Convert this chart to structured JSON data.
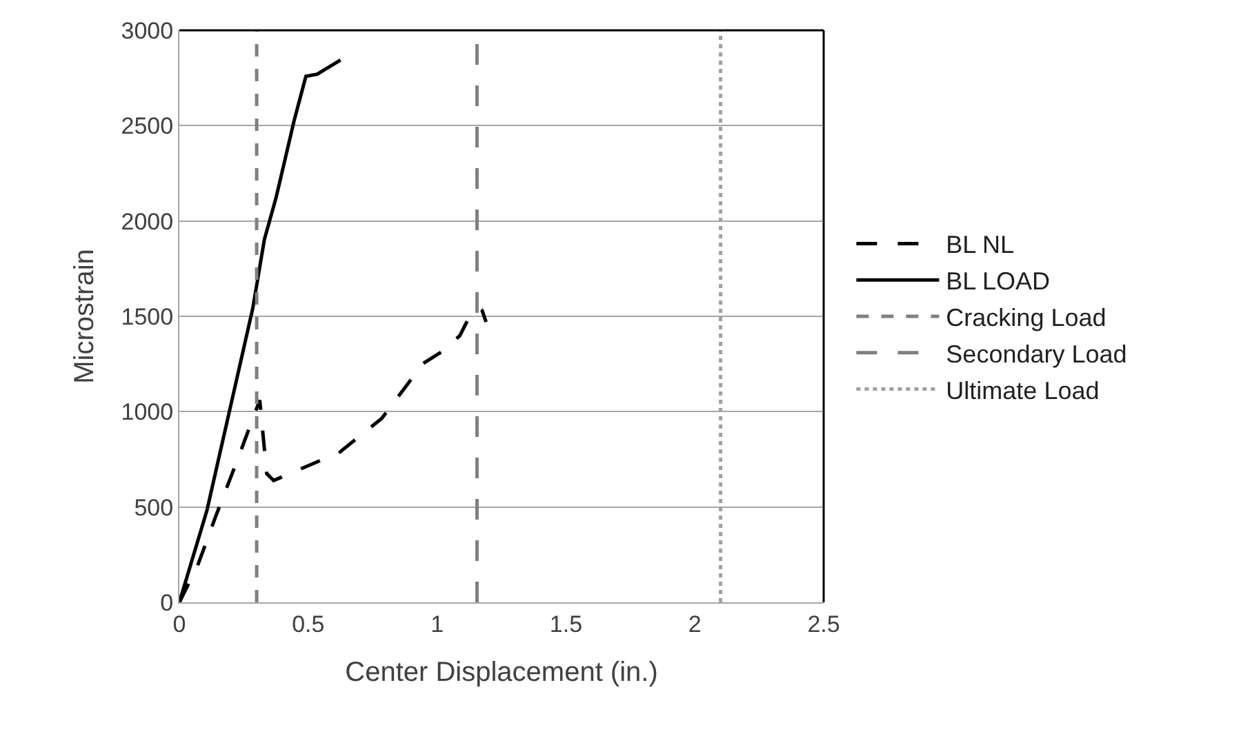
{
  "chart_data": {
    "type": "line",
    "xlabel": "Center Displacement (in.)",
    "ylabel": "Microstrain",
    "xlim": [
      0,
      2.5
    ],
    "xticks": [
      0,
      0.5,
      1,
      1.5,
      2,
      2.5
    ],
    "ylim": [
      0,
      3000
    ],
    "yticks": [
      0,
      500,
      1000,
      1500,
      2000,
      2500,
      3000
    ],
    "grid": "y",
    "legend": "right",
    "marker": "none",
    "series": [
      {
        "name": "BL NL",
        "color": "#000000",
        "line_style": "dashed",
        "x": [
          0,
          0.071,
          0.143,
          0.232,
          0.285,
          0.312,
          0.339,
          0.366,
          0.428,
          0.553,
          0.607,
          0.785,
          0.946,
          1.017,
          1.088,
          1.124,
          1.16,
          1.175,
          1.19
        ],
        "values": [
          0,
          193,
          458,
          771,
          964,
          1060,
          675,
          639,
          675,
          747,
          771,
          964,
          1253,
          1313,
          1398,
          1494,
          1543,
          1530,
          1470
        ]
      },
      {
        "name": "BL LOAD",
        "color": "#000000",
        "line_style": "solid",
        "x": [
          0,
          0.107,
          0.285,
          0.33,
          0.375,
          0.446,
          0.491,
          0.535,
          0.625
        ],
        "values": [
          0,
          482,
          1543,
          1904,
          2121,
          2530,
          2759,
          2770,
          2844
        ]
      },
      {
        "name": "Cracking Load",
        "color": "#808080",
        "line_style": "dashed",
        "x": [
          0.3,
          0.3
        ],
        "values": [
          0,
          3000
        ]
      },
      {
        "name": "Secondary Load",
        "color": "#808080",
        "line_style": "dashed",
        "x": [
          1.155,
          1.155
        ],
        "values": [
          0,
          3000
        ]
      },
      {
        "name": "Ultimate Load",
        "color": "#a0a0a0",
        "line_style": "dotted",
        "x": [
          2.1,
          2.1
        ],
        "values": [
          0,
          3000
        ]
      }
    ]
  }
}
